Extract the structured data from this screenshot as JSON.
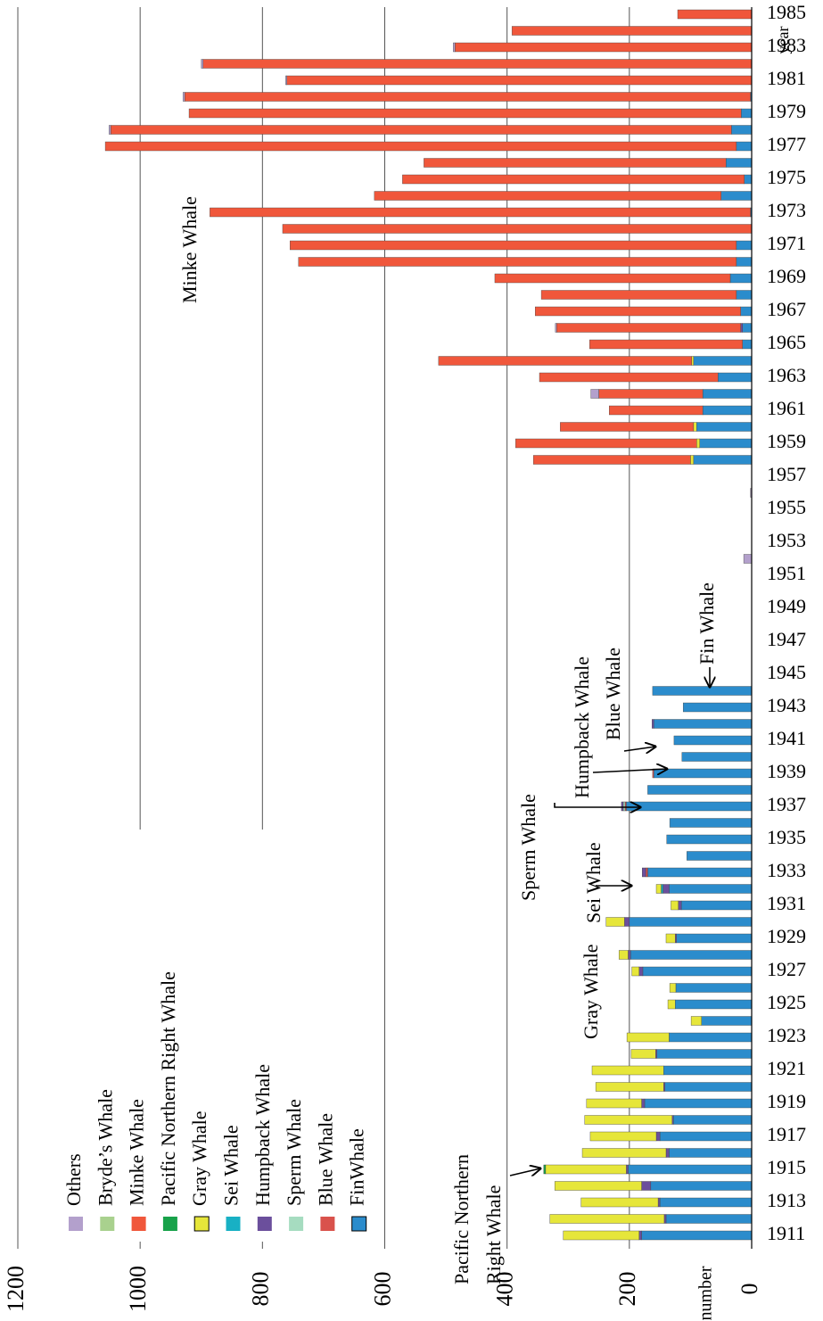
{
  "chart_data": {
    "type": "stacked_bar_horizontal",
    "x_label": "number",
    "y_label": "year",
    "annotations": [
      "Minke Whale",
      "Fin Whale",
      "Blue Whale",
      "Humpback Whale",
      "Sperm Whale",
      "Sei Whale",
      "Gray Whale",
      "Pacific Northern",
      "Right Whale"
    ],
    "categories": [
      "1911",
      null,
      "1913",
      null,
      "1915",
      null,
      "1917",
      null,
      "1919",
      null,
      "1921",
      null,
      "1923",
      null,
      "1925",
      null,
      "1927",
      null,
      "1929",
      null,
      "1931",
      null,
      "1933",
      null,
      "1935",
      null,
      "1937",
      null,
      "1939",
      null,
      "1941",
      null,
      "1943",
      null,
      "1945",
      null,
      "1947",
      null,
      "1949",
      null,
      "1951",
      null,
      "1953",
      null,
      "1955",
      null,
      "1957",
      null,
      "1959",
      null,
      "1961",
      null,
      "1963",
      null,
      "1965",
      null,
      "1967",
      null,
      "1969",
      null,
      "1971",
      null,
      "1973",
      null,
      "1975",
      null,
      "1977",
      null,
      "1979",
      null,
      "1981",
      null,
      "1983",
      null,
      "1985"
    ],
    "series": [
      {
        "name": "FinWhale",
        "color": "#2b8ccc",
        "values": [
          180,
          140,
          150,
          165,
          202,
          135,
          150,
          128,
          175,
          142,
          144,
          155,
          135,
          82,
          125,
          124,
          178,
          198,
          123,
          200,
          115,
          135,
          170,
          106,
          139,
          134,
          205,
          170,
          160,
          114,
          127,
          160,
          112,
          162,
          null,
          null,
          null,
          null,
          null,
          null,
          null,
          null,
          null,
          null,
          null,
          null,
          null,
          95,
          85,
          90,
          80,
          80,
          55,
          95,
          15,
          15,
          18,
          25,
          35,
          25,
          25,
          null,
          2,
          50,
          12,
          42,
          25,
          33,
          17,
          2,
          null,
          null,
          null,
          null,
          null
        ]
      },
      {
        "name": "Blue Whale",
        "color": "#d9524c",
        "values": [
          null,
          null,
          null,
          null,
          null,
          null,
          null,
          null,
          null,
          null,
          null,
          null,
          null,
          null,
          null,
          null,
          null,
          null,
          null,
          null,
          null,
          null,
          3,
          null,
          null,
          null,
          2,
          null,
          2,
          null,
          null,
          null,
          null,
          null,
          null,
          null,
          null,
          null,
          null,
          null,
          null,
          null,
          null,
          null,
          null,
          null,
          null,
          null,
          null,
          null,
          null,
          null,
          null,
          null,
          null,
          null,
          null,
          null,
          null,
          null,
          null,
          null,
          null,
          null,
          null,
          null,
          null,
          null,
          null,
          null,
          null,
          null,
          null,
          null,
          null
        ]
      },
      {
        "name": "Sperm Whale",
        "color": "#a6dcc0",
        "values": [
          null,
          null,
          null,
          null,
          null,
          null,
          null,
          null,
          null,
          null,
          null,
          null,
          null,
          null,
          null,
          null,
          null,
          null,
          null,
          null,
          null,
          null,
          null,
          null,
          null,
          null,
          3,
          null,
          null,
          null,
          null,
          null,
          null,
          null,
          null,
          null,
          null,
          null,
          null,
          null,
          null,
          null,
          null,
          null,
          null,
          null,
          null,
          null,
          null,
          null,
          null,
          null,
          null,
          null,
          null,
          null,
          null,
          null,
          null,
          null,
          null,
          null,
          null,
          null,
          null,
          null,
          null,
          null,
          null,
          null,
          null,
          null,
          null,
          null,
          null
        ]
      },
      {
        "name": "Humpback Whale",
        "color": "#6b4f9c",
        "values": [
          4,
          3,
          3,
          15,
          3,
          5,
          6,
          2,
          5,
          2,
          null,
          2,
          null,
          null,
          null,
          null,
          6,
          4,
          2,
          8,
          5,
          10,
          6,
          null,
          null,
          null,
          3,
          null,
          null,
          null,
          null,
          3,
          null,
          null,
          null,
          null,
          null,
          null,
          null,
          null,
          null,
          null,
          null,
          null,
          null,
          null,
          null,
          null,
          null,
          null,
          null,
          null,
          null,
          null,
          null,
          3,
          null,
          null,
          null,
          null,
          null,
          null,
          null,
          null,
          null,
          null,
          null,
          null,
          null,
          null,
          null,
          null,
          null,
          null,
          null
        ]
      },
      {
        "name": "Sei Whale",
        "color": "#18b0c4",
        "values": [
          null,
          null,
          null,
          null,
          null,
          null,
          null,
          null,
          null,
          null,
          null,
          null,
          null,
          null,
          null,
          null,
          null,
          null,
          null,
          null,
          null,
          3,
          null,
          null,
          null,
          null,
          null,
          null,
          null,
          null,
          null,
          null,
          null,
          null,
          null,
          null,
          null,
          null,
          null,
          null,
          null,
          null,
          null,
          null,
          null,
          null,
          null,
          null,
          null,
          null,
          null,
          null,
          null,
          null,
          null,
          null,
          null,
          null,
          null,
          null,
          null,
          null,
          null,
          null,
          null,
          null,
          null,
          null,
          null,
          null,
          null,
          null,
          null,
          null,
          null
        ]
      },
      {
        "name": "Gray Whale",
        "color": "#e6e63a",
        "values": [
          124,
          187,
          126,
          142,
          132,
          137,
          108,
          143,
          90,
          111,
          117,
          40,
          69,
          17,
          12,
          10,
          12,
          15,
          15,
          30,
          12,
          8,
          null,
          null,
          null,
          null,
          null,
          null,
          null,
          null,
          null,
          null,
          null,
          null,
          null,
          null,
          null,
          null,
          null,
          null,
          null,
          null,
          null,
          null,
          null,
          null,
          null,
          5,
          5,
          5,
          null,
          null,
          null,
          3,
          null,
          null,
          null,
          null,
          null,
          null,
          null,
          null,
          null,
          null,
          null,
          null,
          null,
          null,
          null,
          null,
          null,
          null,
          null,
          null,
          null
        ]
      },
      {
        "name": "Pacific Northern Right Whale",
        "color": "#18a24a",
        "values": [
          null,
          null,
          null,
          null,
          3,
          null,
          null,
          null,
          null,
          null,
          null,
          null,
          null,
          null,
          null,
          null,
          null,
          null,
          null,
          null,
          null,
          null,
          null,
          null,
          null,
          null,
          null,
          null,
          null,
          null,
          null,
          null,
          null,
          null,
          null,
          null,
          null,
          null,
          null,
          null,
          null,
          null,
          null,
          null,
          null,
          null,
          null,
          null,
          null,
          null,
          null,
          null,
          null,
          null,
          null,
          null,
          null,
          null,
          null,
          null,
          null,
          null,
          null,
          null,
          null,
          null,
          null,
          null,
          null,
          null,
          null,
          null,
          null,
          null,
          null
        ]
      },
      {
        "name": "Minke Whale",
        "color": "#f0573b",
        "values": [
          null,
          null,
          null,
          null,
          null,
          null,
          null,
          null,
          null,
          null,
          null,
          null,
          null,
          null,
          null,
          null,
          null,
          null,
          null,
          null,
          null,
          null,
          null,
          null,
          null,
          null,
          null,
          null,
          null,
          null,
          null,
          null,
          null,
          null,
          null,
          null,
          null,
          null,
          null,
          null,
          null,
          null,
          null,
          null,
          null,
          null,
          null,
          257,
          296,
          218,
          153,
          170,
          292,
          414,
          250,
          301,
          336,
          319,
          385,
          716,
          730,
          767,
          884,
          567,
          559,
          494,
          1032,
          1015,
          903,
          925,
          760,
          897,
          485,
          392,
          121
        ]
      },
      {
        "name": "Bryde’s Whale",
        "color": "#a9d18e",
        "values": [
          null,
          null,
          null,
          null,
          null,
          null,
          null,
          null,
          null,
          null,
          null,
          null,
          null,
          null,
          null,
          null,
          null,
          null,
          null,
          null,
          null,
          null,
          null,
          null,
          null,
          null,
          null,
          null,
          null,
          null,
          null,
          null,
          null,
          null,
          null,
          null,
          null,
          null,
          null,
          null,
          null,
          null,
          null,
          null,
          null,
          null,
          null,
          null,
          null,
          null,
          null,
          null,
          null,
          null,
          null,
          null,
          null,
          null,
          null,
          null,
          null,
          null,
          null,
          null,
          null,
          null,
          null,
          null,
          null,
          null,
          null,
          null,
          null,
          null,
          null
        ]
      },
      {
        "name": "Others",
        "color": "#b3a0cc",
        "values": [
          null,
          null,
          null,
          null,
          null,
          null,
          null,
          null,
          null,
          null,
          null,
          null,
          null,
          null,
          null,
          null,
          null,
          null,
          null,
          null,
          null,
          null,
          null,
          null,
          null,
          null,
          null,
          null,
          null,
          null,
          null,
          null,
          null,
          null,
          null,
          null,
          null,
          null,
          null,
          null,
          null,
          13,
          null,
          null,
          null,
          2,
          null,
          null,
          null,
          null,
          null,
          13,
          null,
          null,
          null,
          2,
          null,
          null,
          null,
          null,
          null,
          null,
          null,
          null,
          null,
          null,
          null,
          3,
          null,
          3,
          2,
          3,
          3,
          null,
          null
        ]
      }
    ],
    "xlim": [
      0,
      1200
    ],
    "xticks": [
      0,
      200,
      400,
      600,
      800,
      1000,
      1200
    ],
    "grid": true,
    "legend": "bottom-left"
  }
}
